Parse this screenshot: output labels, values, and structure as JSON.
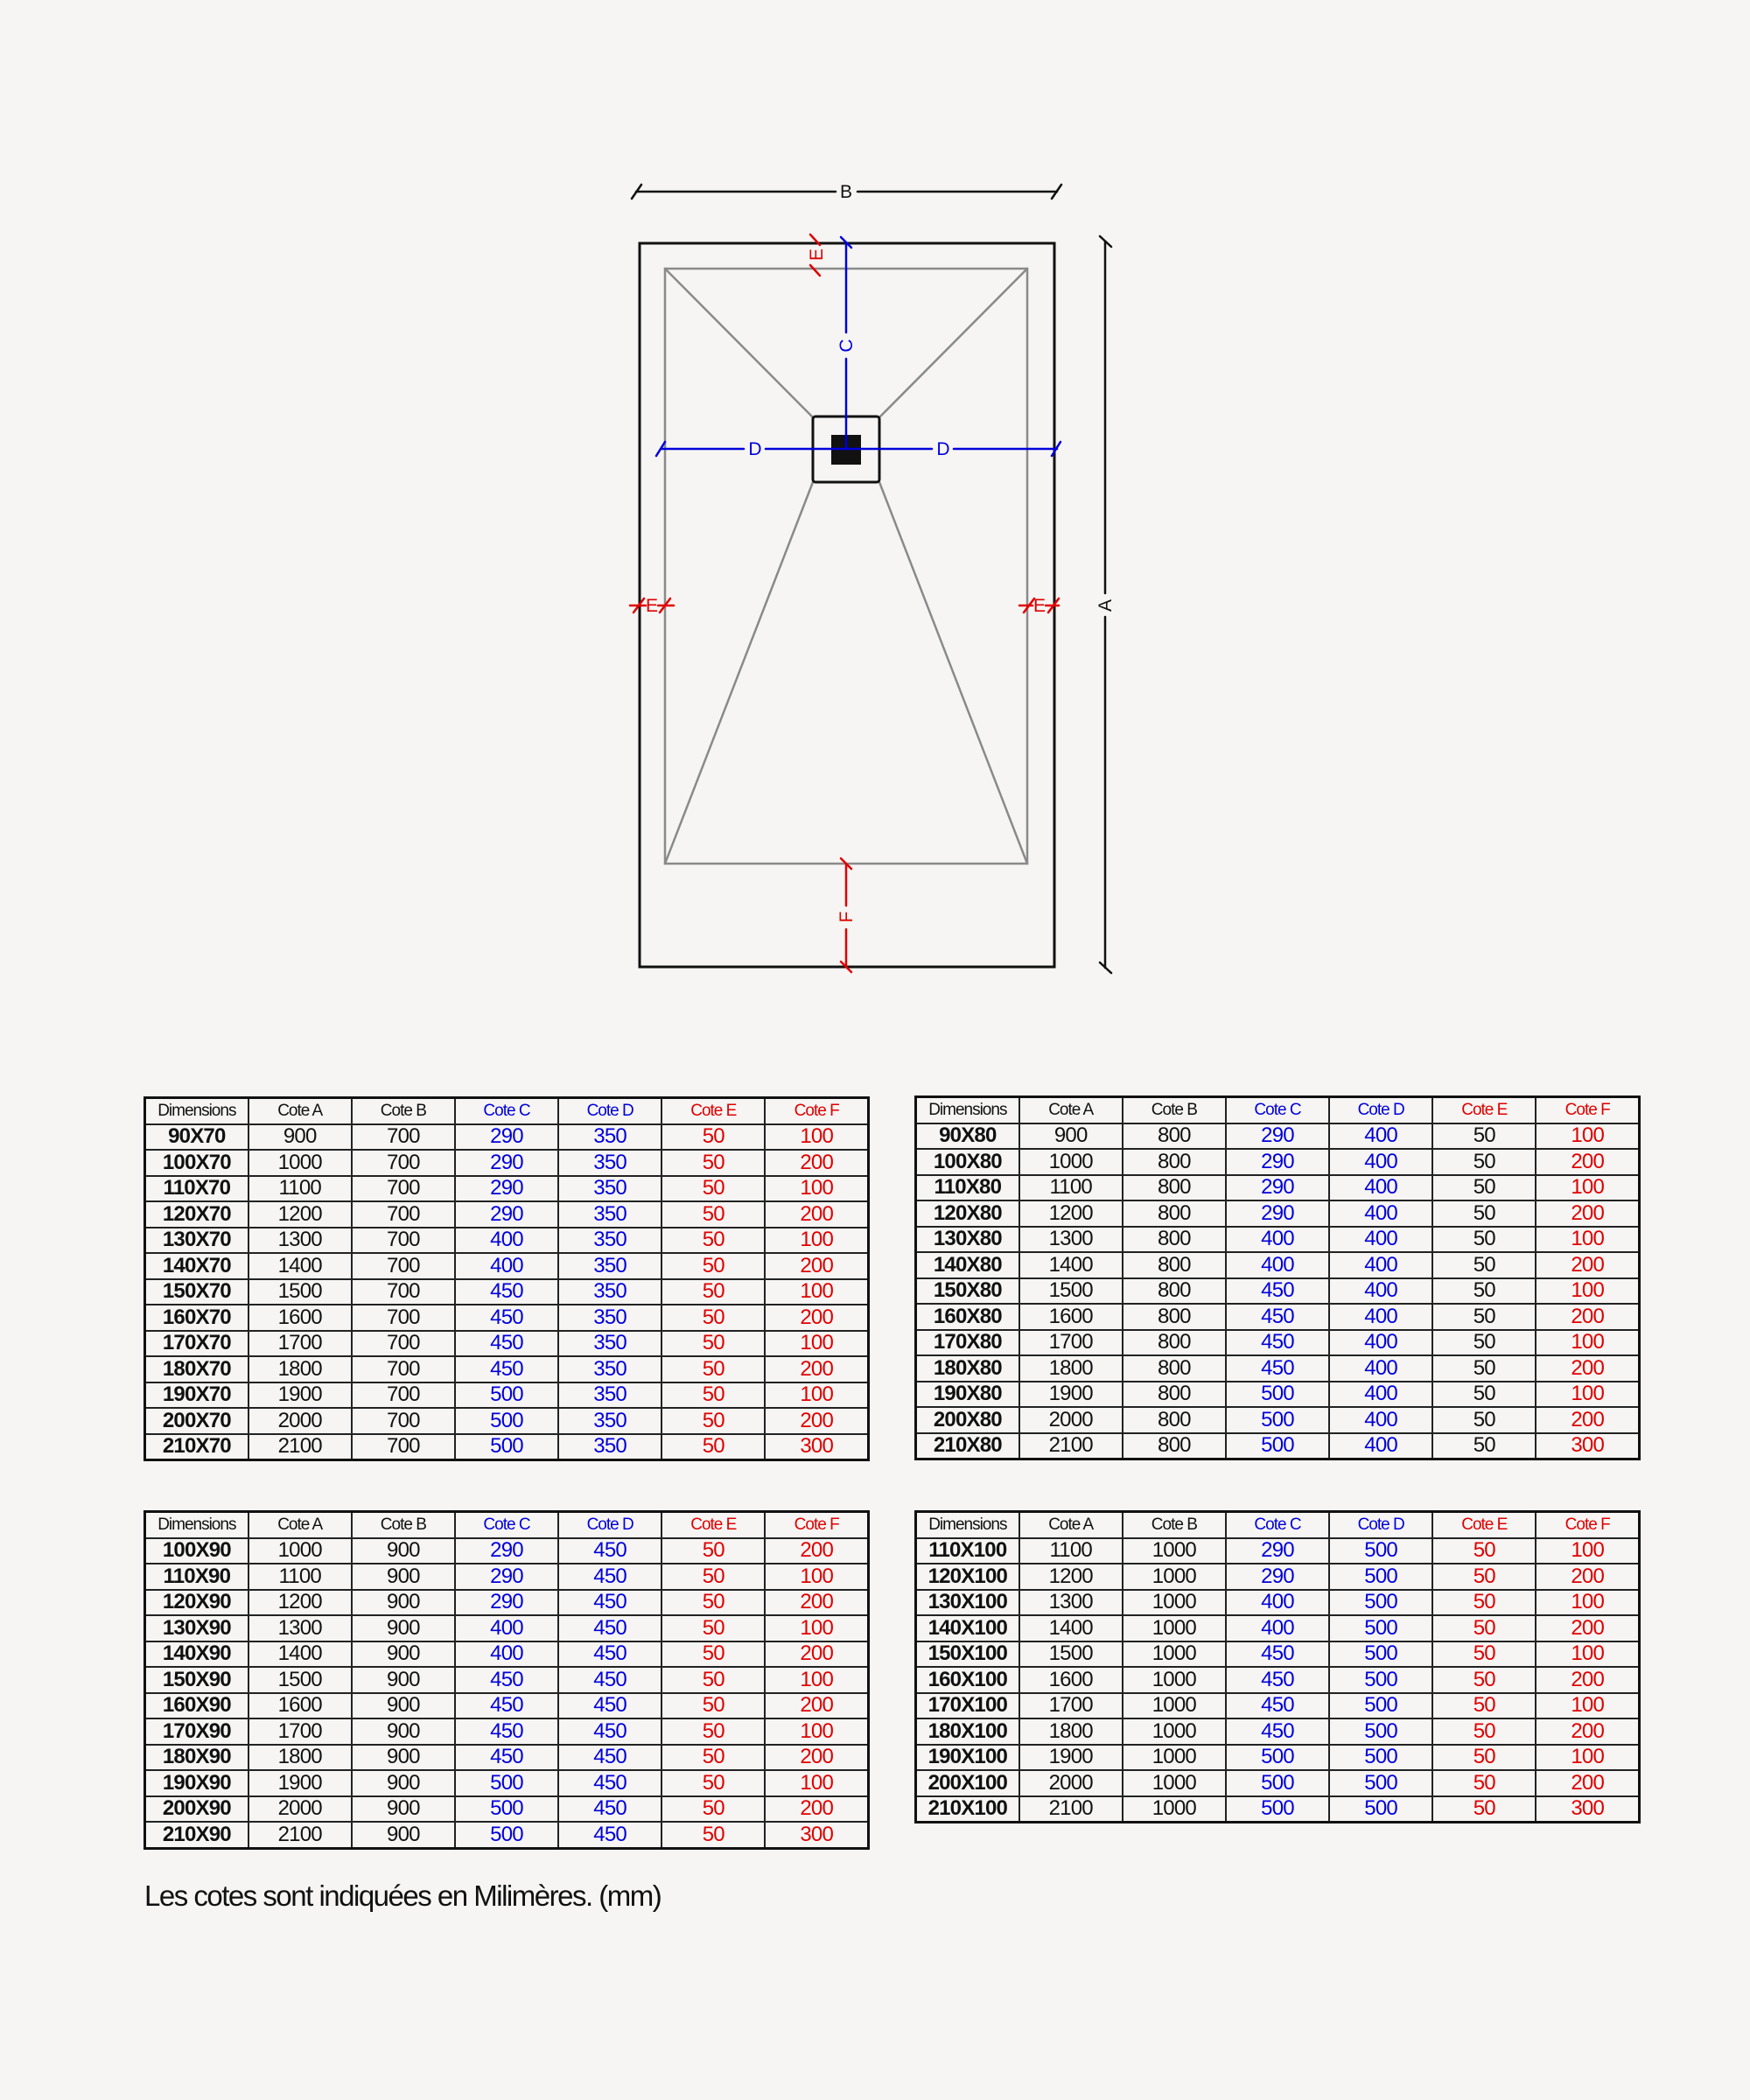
{
  "drawing": {
    "labels": {
      "A": "A",
      "B": "B",
      "C": "C",
      "D": "D",
      "E": "E",
      "F": "F"
    },
    "colors": {
      "outline": "#111111",
      "slope": "#8a8a8a",
      "blue": "#0000dd",
      "red": "#e00000"
    }
  },
  "colors": {
    "black": "#111111",
    "blue": "#0000dd",
    "red": "#e00000"
  },
  "headers": [
    "Dimensions",
    "Cote A",
    "Cote B",
    "Cote C",
    "Cote D",
    "Cote E",
    "Cote F"
  ],
  "tables": [
    {
      "e_color": "red",
      "rows": [
        [
          "90X70",
          "900",
          "700",
          "290",
          "350",
          "50",
          "100"
        ],
        [
          "100X70",
          "1000",
          "700",
          "290",
          "350",
          "50",
          "200"
        ],
        [
          "110X70",
          "1100",
          "700",
          "290",
          "350",
          "50",
          "100"
        ],
        [
          "120X70",
          "1200",
          "700",
          "290",
          "350",
          "50",
          "200"
        ],
        [
          "130X70",
          "1300",
          "700",
          "400",
          "350",
          "50",
          "100"
        ],
        [
          "140X70",
          "1400",
          "700",
          "400",
          "350",
          "50",
          "200"
        ],
        [
          "150X70",
          "1500",
          "700",
          "450",
          "350",
          "50",
          "100"
        ],
        [
          "160X70",
          "1600",
          "700",
          "450",
          "350",
          "50",
          "200"
        ],
        [
          "170X70",
          "1700",
          "700",
          "450",
          "350",
          "50",
          "100"
        ],
        [
          "180X70",
          "1800",
          "700",
          "450",
          "350",
          "50",
          "200"
        ],
        [
          "190X70",
          "1900",
          "700",
          "500",
          "350",
          "50",
          "100"
        ],
        [
          "200X70",
          "2000",
          "700",
          "500",
          "350",
          "50",
          "200"
        ],
        [
          "210X70",
          "2100",
          "700",
          "500",
          "350",
          "50",
          "300"
        ]
      ]
    },
    {
      "e_color": "black",
      "rows": [
        [
          "90X80",
          "900",
          "800",
          "290",
          "400",
          "50",
          "100"
        ],
        [
          "100X80",
          "1000",
          "800",
          "290",
          "400",
          "50",
          "200"
        ],
        [
          "110X80",
          "1100",
          "800",
          "290",
          "400",
          "50",
          "100"
        ],
        [
          "120X80",
          "1200",
          "800",
          "290",
          "400",
          "50",
          "200"
        ],
        [
          "130X80",
          "1300",
          "800",
          "400",
          "400",
          "50",
          "100"
        ],
        [
          "140X80",
          "1400",
          "800",
          "400",
          "400",
          "50",
          "200"
        ],
        [
          "150X80",
          "1500",
          "800",
          "450",
          "400",
          "50",
          "100"
        ],
        [
          "160X80",
          "1600",
          "800",
          "450",
          "400",
          "50",
          "200"
        ],
        [
          "170X80",
          "1700",
          "800",
          "450",
          "400",
          "50",
          "100"
        ],
        [
          "180X80",
          "1800",
          "800",
          "450",
          "400",
          "50",
          "200"
        ],
        [
          "190X80",
          "1900",
          "800",
          "500",
          "400",
          "50",
          "100"
        ],
        [
          "200X80",
          "2000",
          "800",
          "500",
          "400",
          "50",
          "200"
        ],
        [
          "210X80",
          "2100",
          "800",
          "500",
          "400",
          "50",
          "300"
        ]
      ]
    },
    {
      "e_color": "red",
      "rows": [
        [
          "100X90",
          "1000",
          "900",
          "290",
          "450",
          "50",
          "200"
        ],
        [
          "110X90",
          "1100",
          "900",
          "290",
          "450",
          "50",
          "100"
        ],
        [
          "120X90",
          "1200",
          "900",
          "290",
          "450",
          "50",
          "200"
        ],
        [
          "130X90",
          "1300",
          "900",
          "400",
          "450",
          "50",
          "100"
        ],
        [
          "140X90",
          "1400",
          "900",
          "400",
          "450",
          "50",
          "200"
        ],
        [
          "150X90",
          "1500",
          "900",
          "450",
          "450",
          "50",
          "100"
        ],
        [
          "160X90",
          "1600",
          "900",
          "450",
          "450",
          "50",
          "200"
        ],
        [
          "170X90",
          "1700",
          "900",
          "450",
          "450",
          "50",
          "100"
        ],
        [
          "180X90",
          "1800",
          "900",
          "450",
          "450",
          "50",
          "200"
        ],
        [
          "190X90",
          "1900",
          "900",
          "500",
          "450",
          "50",
          "100"
        ],
        [
          "200X90",
          "2000",
          "900",
          "500",
          "450",
          "50",
          "200"
        ],
        [
          "210X90",
          "2100",
          "900",
          "500",
          "450",
          "50",
          "300"
        ]
      ]
    },
    {
      "e_color": "red",
      "rows": [
        [
          "110X100",
          "1100",
          "1000",
          "290",
          "500",
          "50",
          "100"
        ],
        [
          "120X100",
          "1200",
          "1000",
          "290",
          "500",
          "50",
          "200"
        ],
        [
          "130X100",
          "1300",
          "1000",
          "400",
          "500",
          "50",
          "100"
        ],
        [
          "140X100",
          "1400",
          "1000",
          "400",
          "500",
          "50",
          "200"
        ],
        [
          "150X100",
          "1500",
          "1000",
          "450",
          "500",
          "50",
          "100"
        ],
        [
          "160X100",
          "1600",
          "1000",
          "450",
          "500",
          "50",
          "200"
        ],
        [
          "170X100",
          "1700",
          "1000",
          "450",
          "500",
          "50",
          "100"
        ],
        [
          "180X100",
          "1800",
          "1000",
          "450",
          "500",
          "50",
          "200"
        ],
        [
          "190X100",
          "1900",
          "1000",
          "500",
          "500",
          "50",
          "100"
        ],
        [
          "200X100",
          "2000",
          "1000",
          "500",
          "500",
          "50",
          "200"
        ],
        [
          "210X100",
          "2100",
          "1000",
          "500",
          "500",
          "50",
          "300"
        ]
      ]
    }
  ],
  "caption": "Les cotes sont indiquées en Milimères. (mm)"
}
